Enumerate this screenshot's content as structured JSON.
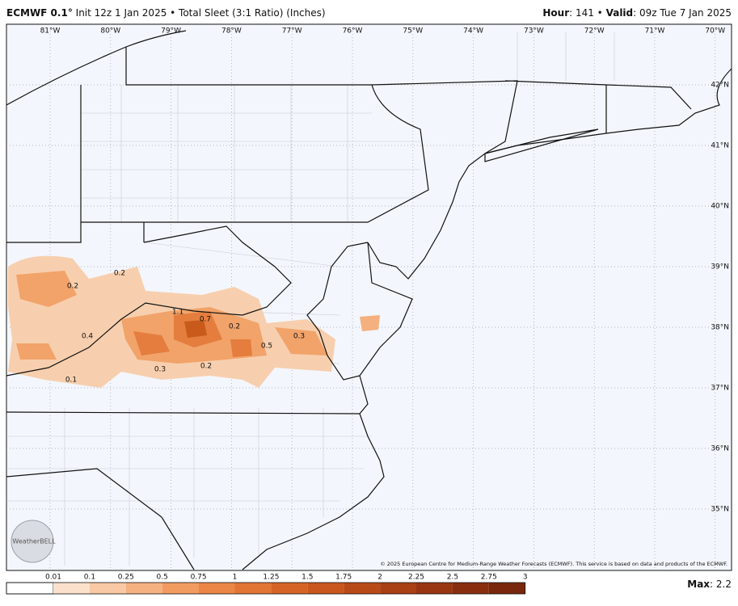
{
  "header": {
    "model": "ECMWF 0.1°",
    "description": "Init 12z 1 Jan 2025 • Total Sleet (3:1 Ratio) (Inches)",
    "hour_label": "Hour",
    "hour_text": ": 141 •",
    "valid_label": "Valid",
    "valid_text": ": 09z Tue 7 Jan 2025"
  },
  "map": {
    "longitudes": [
      "81°W",
      "80°W",
      "79°W",
      "78°W",
      "77°W",
      "76°W",
      "75°W",
      "74°W",
      "73°W",
      "72°W",
      "71°W",
      "70°W"
    ],
    "latitudes": [
      "42°N",
      "41°N",
      "40°N",
      "39°N",
      "38°N",
      "37°N",
      "36°N",
      "35°N"
    ],
    "contour_labels": [
      "0.2",
      "0.2",
      "1.1",
      "0.7",
      "0.2",
      "0.4",
      "0.5",
      "0.3",
      "0.3",
      "0.2",
      "0.1"
    ],
    "logo": "WeatherBELL",
    "copyright": "© 2025 European Centre for Medium-Range Weather Forecasts (ECMWF). This service is based on data and products of the ECMWF."
  },
  "colorbar": {
    "ticks": [
      "0.01",
      "0.1",
      "0.25",
      "0.5",
      "0.75",
      "1",
      "1.25",
      "1.5",
      "1.75",
      "2",
      "2.25",
      "2.5",
      "2.75",
      "3"
    ]
  },
  "footer": {
    "max_label": "Max",
    "max_text": ": 2.2"
  }
}
